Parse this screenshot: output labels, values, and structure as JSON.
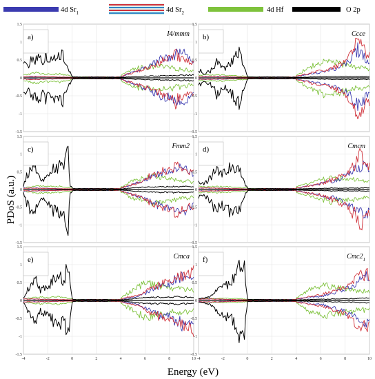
{
  "chart_data": {
    "type": "line",
    "xlabel": "Energy (eV)",
    "ylabel": "PDoS (a.u.)",
    "xlim": [
      -4,
      10
    ],
    "ylim": [
      -1.5,
      1.5
    ],
    "xticks": [
      "-4",
      "-2",
      "0",
      "2",
      "4",
      "6",
      "8",
      "10"
    ],
    "yticks": [
      "1.5",
      "1",
      "0.5",
      "0",
      "-0.5",
      "-1",
      "-1.5"
    ],
    "grid": true,
    "legend_position": "top",
    "legend": [
      {
        "label": "4d Sr",
        "sub": "1",
        "color": "#3b3bb0"
      },
      {
        "label": "4d Sr",
        "sub": "2",
        "color": "#d0313a"
      },
      {
        "label": "4d Hf",
        "sub": "",
        "color": "#7ec23c"
      },
      {
        "label": "O 2p",
        "sub": "",
        "color": "#000000"
      }
    ],
    "panels": [
      {
        "letter": "a)",
        "group": "I4/mmm",
        "group_sub": ""
      },
      {
        "letter": "b)",
        "group": "Ccce",
        "group_sub": ""
      },
      {
        "letter": "c)",
        "group": "Fmm2",
        "group_sub": ""
      },
      {
        "letter": "d)",
        "group": "Cmcm",
        "group_sub": ""
      },
      {
        "letter": "e)",
        "group": "Cmca",
        "group_sub": ""
      },
      {
        "letter": "f)",
        "group": "Cmc2",
        "group_sub": "1"
      }
    ],
    "series_envelopes": [
      {
        "panel": "a)",
        "O 2p": [
          [
            -3.9,
            0.45
          ],
          [
            -3.5,
            0.5
          ],
          [
            -3.2,
            0.75
          ],
          [
            -3,
            0.6
          ],
          [
            -2.7,
            0.7
          ],
          [
            -2.4,
            0.55
          ],
          [
            -2.2,
            0.8
          ],
          [
            -2,
            0.6
          ],
          [
            -1.6,
            0.6
          ],
          [
            -1.3,
            0.85
          ],
          [
            -1.1,
            0.7
          ],
          [
            -0.8,
            0.8
          ],
          [
            -0.5,
            0.5
          ],
          [
            -0.3,
            0.3
          ],
          [
            0,
            0.05
          ],
          [
            4,
            0.02
          ],
          [
            6,
            0.06
          ],
          [
            8,
            0.08
          ],
          [
            10,
            0.1
          ]
        ],
        "4d Sr1": [
          [
            -3,
            0.05
          ],
          [
            0,
            0.02
          ],
          [
            4,
            0.05
          ],
          [
            5.5,
            0.25
          ],
          [
            6.5,
            0.45
          ],
          [
            7.5,
            0.7
          ],
          [
            8,
            0.75
          ],
          [
            8.5,
            0.85
          ],
          [
            9,
            0.9
          ],
          [
            9.3,
            0.8
          ],
          [
            10,
            0.6
          ]
        ],
        "4d Sr2": [
          [
            -3,
            0.05
          ],
          [
            0,
            0.02
          ],
          [
            4,
            0.05
          ],
          [
            5.5,
            0.25
          ],
          [
            6.5,
            0.4
          ],
          [
            7.5,
            0.6
          ],
          [
            8,
            0.7
          ],
          [
            8.5,
            0.8
          ],
          [
            9,
            0.7
          ],
          [
            10,
            0.5
          ]
        ],
        "4d Hf": [
          [
            -3.9,
            0.1
          ],
          [
            -3,
            0.18
          ],
          [
            -2,
            0.12
          ],
          [
            -1,
            0.15
          ],
          [
            0,
            0.05
          ],
          [
            4,
            0.08
          ],
          [
            5,
            0.3
          ],
          [
            5.5,
            0.35
          ],
          [
            6.5,
            0.38
          ],
          [
            7,
            0.4
          ],
          [
            8,
            0.35
          ],
          [
            9,
            0.3
          ],
          [
            10,
            0.25
          ]
        ]
      },
      {
        "panel": "b)",
        "O 2p": [
          [
            -4,
            0.3
          ],
          [
            -3.5,
            0.15
          ],
          [
            -3,
            0.25
          ],
          [
            -2.5,
            0.55
          ],
          [
            -2,
            0.3
          ],
          [
            -1.5,
            0.45
          ],
          [
            -1.2,
            0.6
          ],
          [
            -0.8,
            0.85
          ],
          [
            -0.6,
            0.95
          ],
          [
            -0.4,
            0.5
          ],
          [
            0,
            0.05
          ],
          [
            4,
            0.02
          ],
          [
            7,
            0.05
          ],
          [
            10,
            0.05
          ]
        ],
        "4d Sr1": [
          [
            -3,
            0.05
          ],
          [
            0,
            0.02
          ],
          [
            4,
            0.05
          ],
          [
            6,
            0.2
          ],
          [
            7.5,
            0.35
          ],
          [
            8.5,
            0.6
          ],
          [
            9,
            1.0
          ],
          [
            9.5,
            0.8
          ],
          [
            10,
            0.55
          ]
        ],
        "4d Sr2": [
          [
            -3,
            0.05
          ],
          [
            0,
            0.02
          ],
          [
            4,
            0.05
          ],
          [
            6,
            0.25
          ],
          [
            7.5,
            0.4
          ],
          [
            8.5,
            0.8
          ],
          [
            9,
            1.35
          ],
          [
            9.5,
            0.95
          ],
          [
            10,
            0.8
          ]
        ],
        "4d Hf": [
          [
            -4,
            0.1
          ],
          [
            -2,
            0.1
          ],
          [
            0,
            0.05
          ],
          [
            4,
            0.08
          ],
          [
            4.8,
            0.3
          ],
          [
            5.5,
            0.45
          ],
          [
            6.5,
            0.55
          ],
          [
            7.5,
            0.5
          ],
          [
            8.5,
            0.4
          ],
          [
            9.5,
            0.35
          ],
          [
            10,
            0.3
          ]
        ]
      },
      {
        "panel": "c)",
        "O 2p": [
          [
            -4,
            0.1
          ],
          [
            -3.7,
            0.55
          ],
          [
            -3.3,
            0.7
          ],
          [
            -3,
            0.8
          ],
          [
            -2.6,
            0.35
          ],
          [
            -2,
            0.45
          ],
          [
            -1.5,
            0.75
          ],
          [
            -1,
            0.85
          ],
          [
            -0.7,
            0.7
          ],
          [
            -0.3,
            1.4
          ],
          [
            -0.2,
            0.2
          ],
          [
            0,
            0.05
          ],
          [
            4,
            0.02
          ],
          [
            6,
            0.08
          ],
          [
            8,
            0.1
          ],
          [
            10,
            0.1
          ]
        ],
        "4d Sr1": [
          [
            -3,
            0.05
          ],
          [
            0,
            0.02
          ],
          [
            4,
            0.05
          ],
          [
            5.5,
            0.25
          ],
          [
            6.5,
            0.45
          ],
          [
            7.5,
            0.6
          ],
          [
            8,
            0.6
          ],
          [
            8.5,
            0.8
          ],
          [
            9,
            0.75
          ],
          [
            9.5,
            0.65
          ],
          [
            10,
            0.55
          ]
        ],
        "4d Sr2": [
          [
            -3,
            0.05
          ],
          [
            0,
            0.02
          ],
          [
            4,
            0.05
          ],
          [
            5.5,
            0.25
          ],
          [
            6.5,
            0.5
          ],
          [
            7.5,
            0.65
          ],
          [
            8,
            0.7
          ],
          [
            8.5,
            0.85
          ],
          [
            9,
            0.7
          ],
          [
            10,
            0.6
          ]
        ],
        "4d Hf": [
          [
            -4,
            0.05
          ],
          [
            -3,
            0.12
          ],
          [
            -2,
            0.1
          ],
          [
            -1,
            0.12
          ],
          [
            0,
            0.05
          ],
          [
            4,
            0.08
          ],
          [
            5,
            0.3
          ],
          [
            6,
            0.4
          ],
          [
            7,
            0.5
          ],
          [
            7.5,
            0.45
          ],
          [
            8.5,
            0.35
          ],
          [
            9.5,
            0.3
          ],
          [
            10,
            0.25
          ]
        ]
      },
      {
        "panel": "d)",
        "O 2p": [
          [
            -4,
            0.25
          ],
          [
            -3.5,
            0.2
          ],
          [
            -3,
            0.45
          ],
          [
            -2.5,
            0.8
          ],
          [
            -2,
            0.55
          ],
          [
            -1.5,
            0.8
          ],
          [
            -1,
            0.7
          ],
          [
            -0.7,
            0.9
          ],
          [
            -0.5,
            0.45
          ],
          [
            0,
            0.05
          ],
          [
            4,
            0.02
          ],
          [
            7,
            0.05
          ],
          [
            10,
            0.05
          ]
        ],
        "4d Sr1": [
          [
            -3,
            0.05
          ],
          [
            0,
            0.02
          ],
          [
            4,
            0.05
          ],
          [
            6,
            0.2
          ],
          [
            7,
            0.3
          ],
          [
            8,
            0.45
          ],
          [
            8.8,
            0.7
          ],
          [
            9.5,
            0.85
          ],
          [
            10,
            0.75
          ]
        ],
        "4d Sr2": [
          [
            -3,
            0.05
          ],
          [
            0,
            0.02
          ],
          [
            4,
            0.05
          ],
          [
            6,
            0.2
          ],
          [
            7,
            0.35
          ],
          [
            8,
            0.5
          ],
          [
            8.8,
            0.85
          ],
          [
            9.3,
            1.45
          ],
          [
            9.6,
            0.9
          ],
          [
            10,
            0.8
          ]
        ],
        "4d Hf": [
          [
            -4,
            0.1
          ],
          [
            -2,
            0.1
          ],
          [
            0,
            0.05
          ],
          [
            4,
            0.08
          ],
          [
            4.8,
            0.2
          ],
          [
            5.5,
            0.3
          ],
          [
            6.5,
            0.4
          ],
          [
            7.5,
            0.4
          ],
          [
            8.5,
            0.35
          ],
          [
            9.5,
            0.3
          ],
          [
            10,
            0.25
          ]
        ]
      },
      {
        "panel": "e)",
        "O 2p": [
          [
            -4,
            0.1
          ],
          [
            -3.7,
            0.35
          ],
          [
            -3.3,
            0.5
          ],
          [
            -3,
            0.75
          ],
          [
            -2.6,
            0.35
          ],
          [
            -2,
            0.5
          ],
          [
            -1.5,
            0.75
          ],
          [
            -1,
            0.85
          ],
          [
            -0.7,
            0.6
          ],
          [
            -0.3,
            1.45
          ],
          [
            0,
            0.05
          ],
          [
            4,
            0.02
          ],
          [
            6,
            0.1
          ],
          [
            8,
            0.12
          ],
          [
            10,
            0.12
          ]
        ],
        "4d Sr1": [
          [
            -3,
            0.05
          ],
          [
            0,
            0.02
          ],
          [
            4,
            0.05
          ],
          [
            5.5,
            0.15
          ],
          [
            6.5,
            0.35
          ],
          [
            7.5,
            0.55
          ],
          [
            8,
            0.6
          ],
          [
            8.8,
            0.8
          ],
          [
            9.3,
            0.9
          ],
          [
            10,
            0.95
          ]
        ],
        "4d Sr2": [
          [
            -3,
            0.05
          ],
          [
            0,
            0.02
          ],
          [
            4,
            0.05
          ],
          [
            5.5,
            0.2
          ],
          [
            6.5,
            0.4
          ],
          [
            7.5,
            0.6
          ],
          [
            8,
            0.65
          ],
          [
            8.8,
            0.85
          ],
          [
            9.3,
            0.9
          ],
          [
            10,
            1.0
          ]
        ],
        "4d Hf": [
          [
            -4,
            0.05
          ],
          [
            -3,
            0.12
          ],
          [
            -2,
            0.1
          ],
          [
            -1,
            0.12
          ],
          [
            0,
            0.05
          ],
          [
            4,
            0.1
          ],
          [
            5,
            0.35
          ],
          [
            5.5,
            0.5
          ],
          [
            6.2,
            0.6
          ],
          [
            7,
            0.5
          ],
          [
            8,
            0.45
          ],
          [
            9,
            0.4
          ],
          [
            10,
            0.35
          ]
        ]
      },
      {
        "panel": "f)",
        "O 2p": [
          [
            -4,
            0.05
          ],
          [
            -3.5,
            0.1
          ],
          [
            -3,
            0.15
          ],
          [
            -2.5,
            0.35
          ],
          [
            -2,
            0.45
          ],
          [
            -1.5,
            0.6
          ],
          [
            -1,
            0.8
          ],
          [
            -0.8,
            1.0
          ],
          [
            -0.5,
            1.3
          ],
          [
            -0.3,
            1.5
          ],
          [
            0,
            0.05
          ],
          [
            4,
            0.02
          ],
          [
            7,
            0.05
          ],
          [
            10,
            0.08
          ]
        ],
        "4d Sr1": [
          [
            -3,
            0.05
          ],
          [
            0,
            0.02
          ],
          [
            4,
            0.05
          ],
          [
            6,
            0.15
          ],
          [
            7,
            0.25
          ],
          [
            8,
            0.4
          ],
          [
            8.8,
            0.6
          ],
          [
            9.3,
            0.75
          ],
          [
            10,
            0.85
          ]
        ],
        "4d Sr2": [
          [
            -3,
            0.05
          ],
          [
            0,
            0.02
          ],
          [
            4,
            0.05
          ],
          [
            6,
            0.2
          ],
          [
            7,
            0.3
          ],
          [
            8,
            0.45
          ],
          [
            8.8,
            0.7
          ],
          [
            9.3,
            0.9
          ],
          [
            10,
            0.9
          ]
        ],
        "4d Hf": [
          [
            -4,
            0.05
          ],
          [
            -2,
            0.08
          ],
          [
            0,
            0.05
          ],
          [
            4,
            0.1
          ],
          [
            5,
            0.35
          ],
          [
            5.5,
            0.4
          ],
          [
            6.2,
            0.55
          ],
          [
            7,
            0.5
          ],
          [
            8,
            0.4
          ],
          [
            9,
            0.35
          ],
          [
            10,
            0.3
          ]
        ]
      }
    ]
  }
}
